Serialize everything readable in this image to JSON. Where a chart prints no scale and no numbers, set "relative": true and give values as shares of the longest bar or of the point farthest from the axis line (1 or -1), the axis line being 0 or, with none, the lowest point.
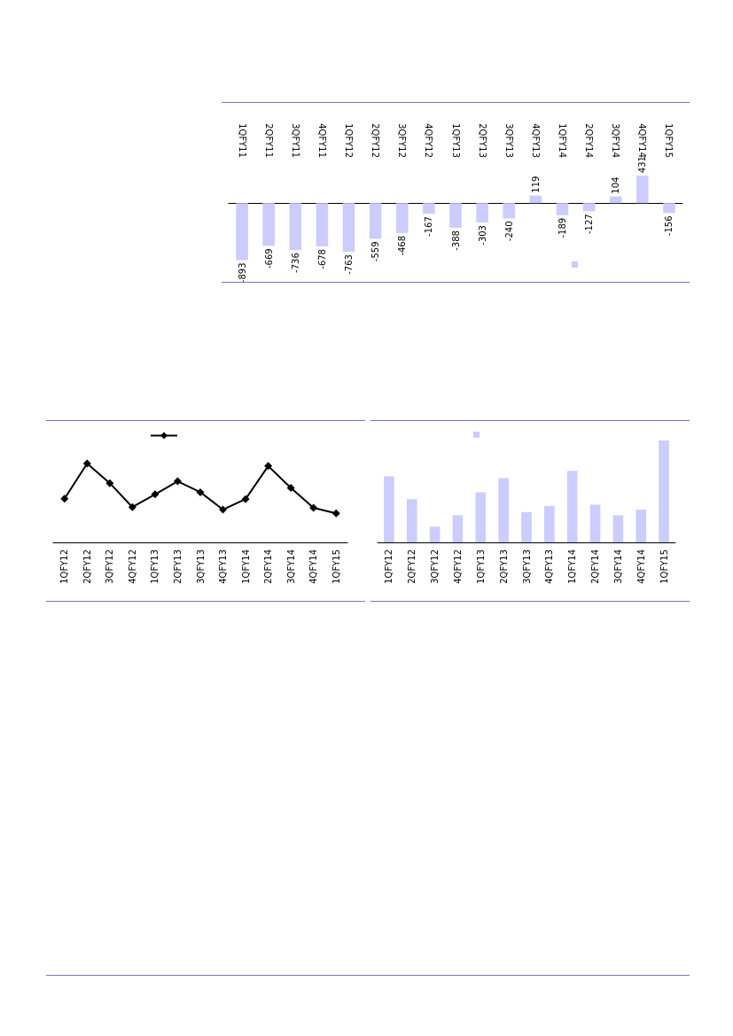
{
  "chart_data": [
    {
      "type": "bar",
      "categories": [
        "1QFY11",
        "2QFY11",
        "3QFY11",
        "4QFY11",
        "1QFY12",
        "2QFY12",
        "3QFY12",
        "4QFY12",
        "1QFY13",
        "2QFY13",
        "3QFY13",
        "4QFY13",
        "1QFY14",
        "2QFY14",
        "3QFY14",
        "4QFY14",
        "1QFY15"
      ],
      "values": [
        -893,
        -669,
        -736,
        -678,
        -763,
        -559,
        -468,
        -167,
        -388,
        -303,
        -240,
        119,
        -189,
        -127,
        104,
        431,
        -156
      ],
      "color": "#ccccff",
      "data_labels": true
    },
    {
      "type": "line",
      "relative": true,
      "categories": [
        "1QFY12",
        "2QFY12",
        "3QFY12",
        "4QFY12",
        "1QFY13",
        "2QFY13",
        "3QFY13",
        "4QFY13",
        "1QFY14",
        "2QFY14",
        "3QFY14",
        "4QFY14",
        "1QFY15"
      ],
      "values": [
        0.553,
        1,
        0.751,
        0.447,
        0.609,
        0.775,
        0.636,
        0.415,
        0.549,
        0.968,
        0.692,
        0.439,
        0.368
      ],
      "color": "#000000",
      "marker": "diamond",
      "line_style": "solid"
    },
    {
      "type": "bar",
      "relative": true,
      "categories": [
        "1QFY12",
        "2QFY12",
        "3QFY12",
        "4QFY12",
        "1QFY13",
        "2QFY13",
        "3QFY13",
        "4QFY13",
        "1QFY14",
        "2QFY14",
        "3QFY14",
        "4QFY14",
        "1QFY15"
      ],
      "values": [
        0.648,
        0.423,
        0.154,
        0.266,
        0.491,
        0.631,
        0.297,
        0.358,
        0.703,
        0.369,
        0.266,
        0.321,
        1
      ],
      "color": "#ccccff"
    }
  ]
}
